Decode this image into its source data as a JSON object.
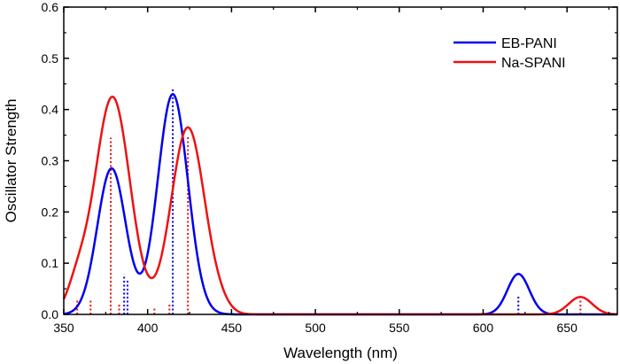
{
  "chart_data": {
    "type": "line",
    "title": "",
    "xlabel": "Wavelength (nm)",
    "ylabel": "Oscillator Strength",
    "xlim": [
      350,
      680
    ],
    "ylim": [
      0,
      0.6
    ],
    "x_ticks": [
      350,
      400,
      450,
      500,
      550,
      600,
      650
    ],
    "x_tick_labels": [
      "350",
      "400",
      "450",
      "500",
      "550",
      "600",
      "650"
    ],
    "y_ticks": [
      0.0,
      0.1,
      0.2,
      0.3,
      0.4,
      0.5,
      0.6
    ],
    "y_tick_labels": [
      "0.0",
      "0.1",
      "0.2",
      "0.3",
      "0.4",
      "0.5",
      "0.6"
    ],
    "legend_position": "top-right",
    "series": [
      {
        "name": "EB-PANI",
        "color": "#0000ee",
        "peaks": [
          {
            "center": 378.5,
            "height": 0.285,
            "sigma": 8.5
          },
          {
            "center": 415,
            "height": 0.43,
            "sigma": 9
          },
          {
            "center": 621,
            "height": 0.079,
            "sigma": 6.5
          }
        ],
        "sticks": [
          {
            "x": 386,
            "y": 0.078
          },
          {
            "x": 388,
            "y": 0.07
          },
          {
            "x": 415,
            "y": 0.44
          },
          {
            "x": 621,
            "y": 0.038
          }
        ]
      },
      {
        "name": "Na-SPANI",
        "color": "#ee1111",
        "peaks": [
          {
            "center": 379,
            "height": 0.425,
            "sigma": 10.5
          },
          {
            "center": 424,
            "height": 0.365,
            "sigma": 10
          },
          {
            "center": 658,
            "height": 0.034,
            "sigma": 7
          },
          {
            "center": 358,
            "height": 0.05,
            "sigma": 6
          },
          {
            "center": 443,
            "height": 0.01,
            "sigma": 6
          }
        ],
        "sticks": [
          {
            "x": 358,
            "y": 0.03
          },
          {
            "x": 366,
            "y": 0.027
          },
          {
            "x": 378,
            "y": 0.345
          },
          {
            "x": 383,
            "y": 0.02
          },
          {
            "x": 404,
            "y": 0.013
          },
          {
            "x": 413,
            "y": 0.02
          },
          {
            "x": 424,
            "y": 0.35
          },
          {
            "x": 658,
            "y": 0.03
          }
        ]
      }
    ]
  }
}
